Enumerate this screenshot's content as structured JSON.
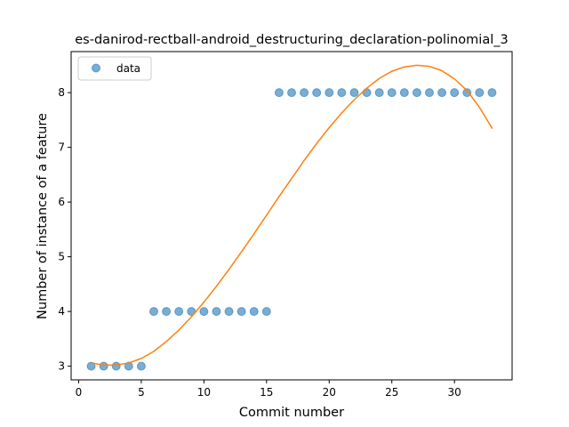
{
  "chart_data": {
    "type": "scatter",
    "title": "es-danirod-rectball-android_destructuring_declaration-polinomial_3",
    "xlabel": "Commit number",
    "ylabel": "Number of instance of a feature",
    "xlim": [
      -0.6,
      34.6
    ],
    "ylim": [
      2.75,
      8.75
    ],
    "xticks": [
      0,
      5,
      10,
      15,
      20,
      25,
      30
    ],
    "yticks": [
      3,
      4,
      5,
      6,
      7,
      8
    ],
    "grid": false,
    "legend_position": "top-left",
    "series": [
      {
        "name": "data",
        "kind": "scatter",
        "color": "#1f77b4",
        "x": [
          1,
          2,
          3,
          4,
          5,
          6,
          7,
          8,
          9,
          10,
          11,
          12,
          13,
          14,
          15,
          16,
          17,
          18,
          19,
          20,
          21,
          22,
          23,
          24,
          25,
          26,
          27,
          28,
          29,
          30,
          31,
          32,
          33
        ],
        "y": [
          3,
          3,
          3,
          3,
          3,
          4,
          4,
          4,
          4,
          4,
          4,
          4,
          4,
          4,
          4,
          8,
          8,
          8,
          8,
          8,
          8,
          8,
          8,
          8,
          8,
          8,
          8,
          8,
          8,
          8,
          8,
          8,
          8
        ]
      },
      {
        "kind": "line",
        "color": "#ff7f0e",
        "x": [
          1,
          2,
          3,
          4,
          5,
          6,
          7,
          8,
          9,
          10,
          11,
          12,
          13,
          14,
          15,
          16,
          17,
          18,
          19,
          20,
          21,
          22,
          23,
          24,
          25,
          26,
          27,
          28,
          29,
          30,
          31,
          32,
          33
        ],
        "y": [
          3.06,
          3.02,
          3.02,
          3.06,
          3.14,
          3.27,
          3.45,
          3.66,
          3.9,
          4.17,
          4.46,
          4.77,
          5.09,
          5.42,
          5.76,
          6.1,
          6.43,
          6.76,
          7.07,
          7.36,
          7.63,
          7.87,
          8.08,
          8.26,
          8.39,
          8.47,
          8.5,
          8.48,
          8.4,
          8.25,
          8.04,
          7.73,
          7.35
        ]
      }
    ]
  }
}
